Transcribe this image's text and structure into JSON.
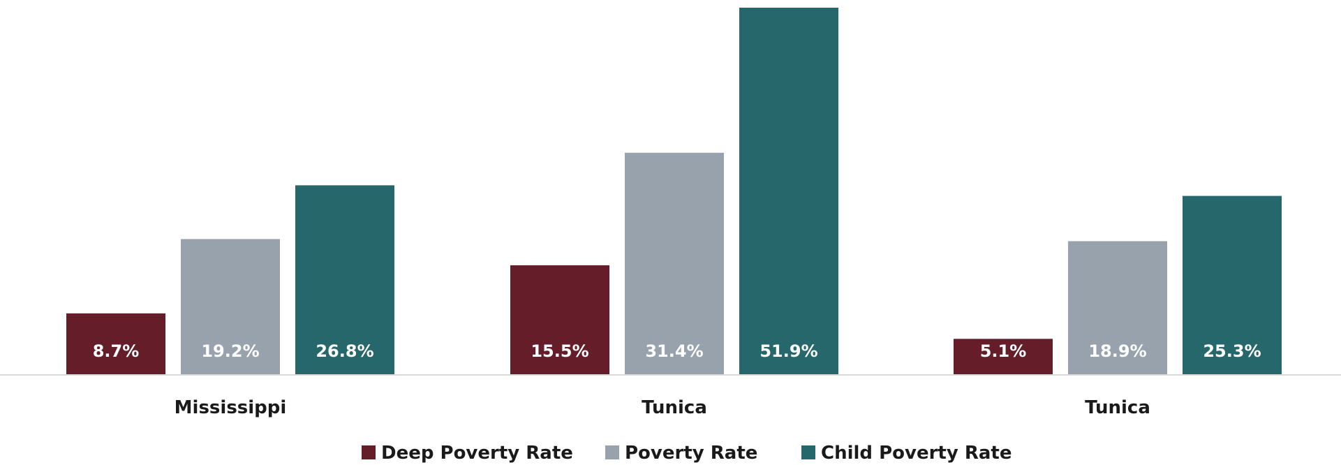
{
  "chart_data": {
    "type": "bar",
    "categories": [
      "Mississippi",
      "Tunica",
      "Tunica"
    ],
    "series": [
      {
        "name": "Deep Poverty Rate",
        "values": [
          8.7,
          15.5,
          5.1
        ],
        "labels": [
          "8.7%",
          "15.5%",
          "5.1%"
        ],
        "color": "#651e29"
      },
      {
        "name": "Poverty Rate",
        "values": [
          19.2,
          31.4,
          18.9
        ],
        "labels": [
          "19.2%",
          "31.4%",
          "18.9%"
        ],
        "color": "#97a2ac"
      },
      {
        "name": "Child Poverty Rate",
        "values": [
          26.8,
          51.9,
          25.3
        ],
        "labels": [
          "26.8%",
          "51.9%",
          "25.3%"
        ],
        "color": "#26676b"
      }
    ],
    "ylim": [
      0,
      52
    ],
    "grid": false,
    "legend": "bottom",
    "axis_color": "#d9d9d9"
  }
}
